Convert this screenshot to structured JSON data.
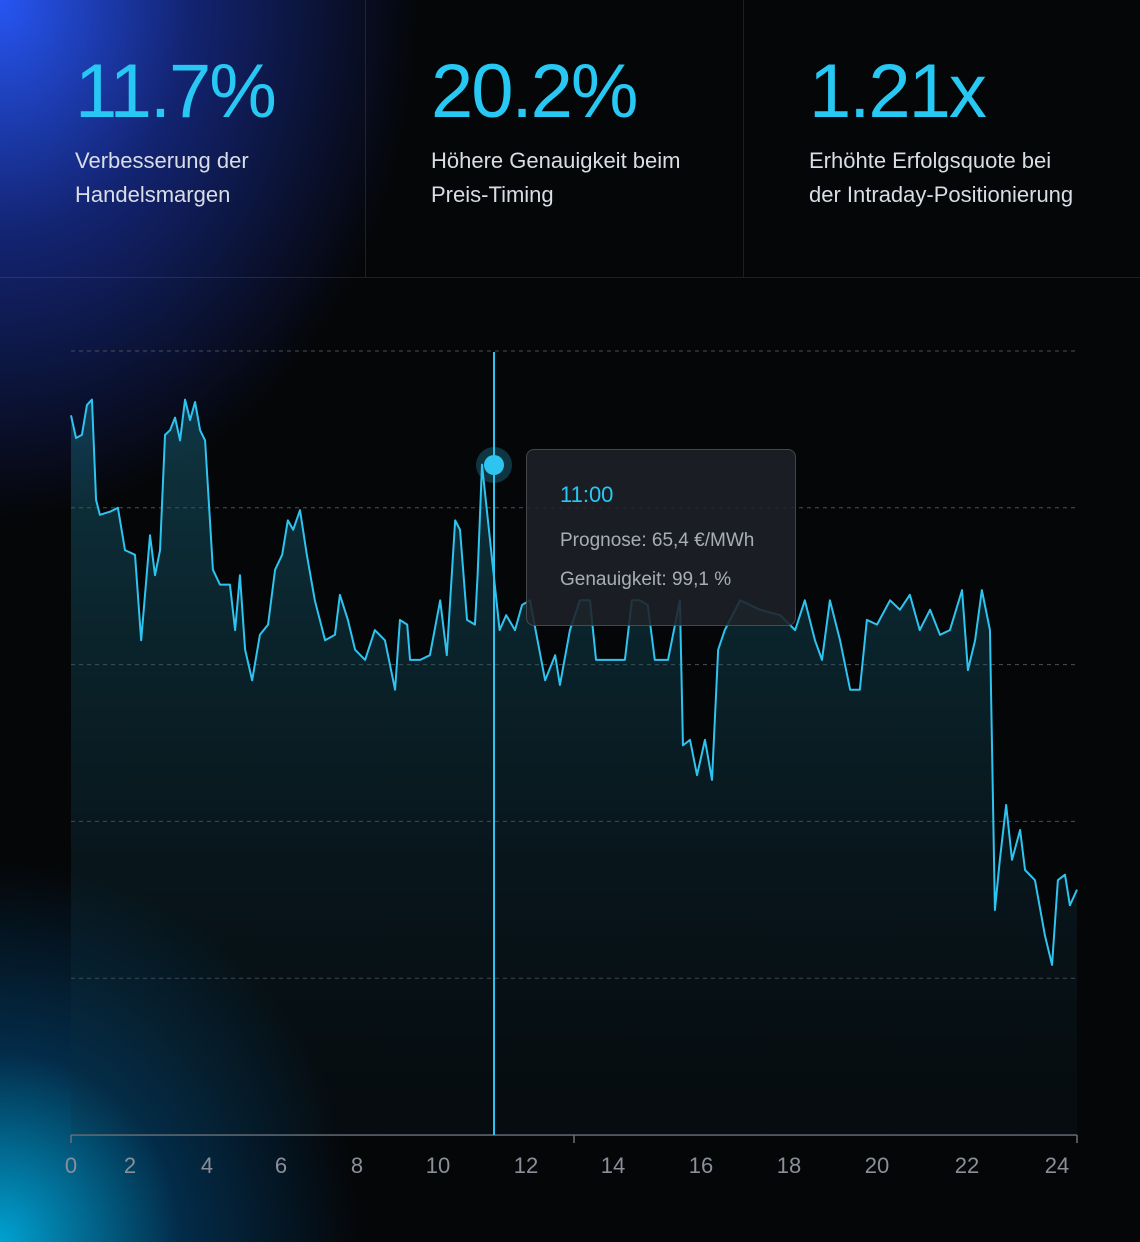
{
  "stats": [
    {
      "value": "11.7%",
      "label": "Verbesserung der Handelsmargen"
    },
    {
      "value": "20.2%",
      "label": "Höhere Genauigkeit beim Preis-Timing"
    },
    {
      "value": "1.21x",
      "label": "Erhöhte Erfolgsquote bei der Intraday-Positionierung"
    }
  ],
  "chart_data": {
    "type": "line",
    "color": "#2ec4f0",
    "grid": true,
    "x": [
      0,
      0.17,
      0.37,
      0.54,
      0.71,
      0.85,
      0.98,
      1.32,
      1.59,
      1.83,
      2.13,
      2.29,
      2.52,
      2.65,
      2.78,
      2.91,
      3.04,
      3.17,
      3.3,
      3.43,
      3.56,
      3.69,
      3.82,
      3.95,
      4.16,
      4.35,
      4.62,
      4.76,
      4.89,
      5.03,
      5.22,
      5.43,
      5.65,
      5.84,
      6.03,
      6.18,
      6.32,
      6.5,
      6.68,
      6.89,
      7.16,
      7.42,
      7.55,
      7.76,
      7.95,
      8.2,
      8.44,
      8.69,
      8.94,
      9.06,
      9.24,
      9.31,
      9.56,
      9.8,
      10.05,
      10.2,
      10.39,
      10.5,
      10.66,
      10.84,
      10.9,
      11,
      11.4,
      11.55,
      11.75,
      11.91,
      12.09,
      12.44,
      12.67,
      12.78,
      13.01,
      13.24,
      13.47,
      13.61,
      13.93,
      14.27,
      14.43,
      14.61,
      14.79,
      14.95,
      15.25,
      15.52,
      15.59,
      15.75,
      15.91,
      16.09,
      16.25,
      16.39,
      16.54,
      16.89,
      17.34,
      17.8,
      18.14,
      18.36,
      18.59,
      18.75,
      18.93,
      19.16,
      19.39,
      19.61,
      19.77,
      20,
      20.29,
      20.51,
      20.73,
      20.95,
      21.18,
      21.4,
      21.62,
      21.89,
      22.02,
      22.18,
      22.33,
      22.51,
      22.62,
      22.73,
      22.87,
      23,
      23.18,
      23.29,
      23.51,
      23.73,
      23.89,
      24.02,
      24.18,
      24.29,
      24.45
    ],
    "values": [
      91.8,
      88.9,
      89.3,
      93.1,
      93.8,
      81.0,
      79.1,
      79.5,
      80.0,
      74.6,
      74.0,
      63.1,
      76.5,
      71.4,
      74.6,
      89.3,
      89.9,
      91.5,
      88.6,
      93.8,
      91.2,
      93.5,
      89.9,
      88.6,
      72.1,
      70.2,
      70.2,
      64.4,
      71.4,
      61.9,
      58.0,
      63.8,
      65.1,
      72.1,
      74.0,
      78.4,
      77.2,
      79.7,
      74.0,
      68.2,
      63.1,
      63.8,
      68.9,
      65.7,
      61.9,
      60.6,
      64.4,
      63.1,
      56.8,
      65.7,
      65.1,
      60.6,
      60.6,
      61.2,
      68.2,
      61.2,
      78.4,
      77.2,
      65.7,
      65.1,
      71.4,
      85.5,
      64.4,
      66.3,
      64.4,
      67.6,
      68.2,
      58.0,
      61.2,
      57.4,
      64.4,
      68.2,
      68.2,
      60.6,
      60.6,
      60.6,
      68.2,
      68.2,
      67.6,
      60.6,
      60.6,
      68.2,
      49.7,
      50.4,
      45.9,
      50.4,
      45.3,
      61.9,
      64.4,
      68.2,
      67.0,
      66.3,
      64.4,
      68.2,
      63.1,
      60.6,
      68.2,
      63.1,
      56.8,
      56.8,
      65.7,
      65.1,
      68.2,
      67.0,
      68.9,
      64.4,
      67.0,
      63.8,
      64.4,
      69.5,
      59.3,
      63.1,
      69.5,
      64.4,
      28.7,
      35.1,
      42.1,
      35.1,
      38.9,
      33.8,
      32.5,
      25.5,
      21.7,
      32.5,
      33.2,
      29.3,
      31.3
    ],
    "xlim": [
      0,
      24.45
    ],
    "ylim": [
      0,
      100
    ],
    "xticks": [
      0,
      2,
      4,
      6,
      8,
      10,
      12,
      14,
      16,
      18,
      20,
      22,
      24
    ],
    "tooltip": {
      "title": "11:00",
      "lines": [
        "Prognose: 65,4 €/MWh",
        "Genauigkeit: 99,1 %"
      ]
    }
  }
}
